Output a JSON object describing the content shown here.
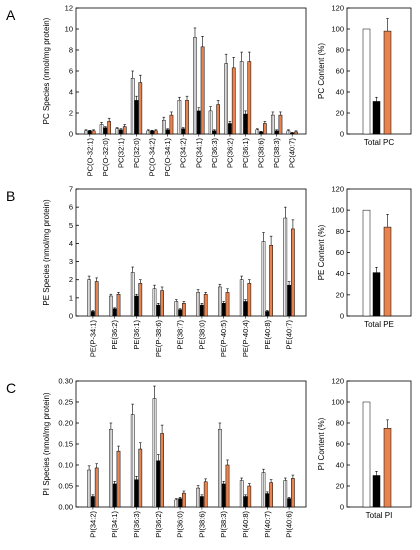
{
  "panels": [
    {
      "letter": "A",
      "species": {
        "ylabel": "PC Species (nmol/mg protein)",
        "ylim": [
          0,
          12
        ],
        "yticks": [
          "0",
          "2",
          "4",
          "6",
          "8",
          "10",
          "12"
        ],
        "categories": [
          "PC(O-32:1)",
          "PC(O-32:0)",
          "PC(32:1)",
          "PC(32:0)",
          "PC(O-34:2)",
          "PC(O-34:1)",
          "PC(34:2)",
          "PC(34:1)",
          "PC(36:3)",
          "PC(36:2)",
          "PC(36:1)",
          "PC(38:6)",
          "PC(38:3)",
          "PC(40:7)"
        ],
        "series": [
          {
            "values": [
              0.3,
              0.9,
              0.5,
              5.3,
              0.3,
              1.3,
              3.2,
              9.2,
              2.2,
              6.7,
              6.9,
              0.4,
              1.8,
              0.3
            ],
            "errors": [
              0.1,
              0.2,
              0.1,
              0.7,
              0.1,
              0.3,
              0.3,
              0.9,
              0.4,
              0.9,
              0.9,
              0.1,
              0.3,
              0.1
            ]
          },
          {
            "values": [
              0.3,
              0.6,
              0.4,
              3.2,
              0.3,
              0.4,
              0.5,
              2.2,
              0.3,
              1.0,
              1.9,
              0.2,
              0.3,
              0.1
            ],
            "errors": [
              0.05,
              0.1,
              0.1,
              0.4,
              0.05,
              0.1,
              0.1,
              0.3,
              0.1,
              0.2,
              0.3,
              0.05,
              0.1,
              0.05
            ]
          },
          {
            "values": [
              0.3,
              1.2,
              0.7,
              4.9,
              0.3,
              1.8,
              3.2,
              8.3,
              2.8,
              6.3,
              6.9,
              1.0,
              1.8,
              0.2
            ],
            "errors": [
              0.1,
              0.3,
              0.2,
              0.7,
              0.1,
              0.3,
              0.4,
              1.0,
              0.4,
              1.0,
              0.9,
              0.2,
              0.3,
              0.1
            ]
          }
        ]
      },
      "total": {
        "ylabel": "PC Content (%)",
        "ylim": [
          0,
          120
        ],
        "yticks": [
          "0",
          "20",
          "40",
          "60",
          "80",
          "100",
          "120"
        ],
        "category": "Total PC",
        "values": [
          100,
          31,
          98
        ],
        "errors": [
          0,
          4,
          12
        ]
      }
    },
    {
      "letter": "B",
      "species": {
        "ylabel": "PE Species (nmol/mg protein)",
        "ylim": [
          0,
          7
        ],
        "yticks": [
          "0",
          "1",
          "2",
          "3",
          "4",
          "5",
          "6",
          "7"
        ],
        "categories": [
          "PE(P-34:1)",
          "PE(36:2)",
          "PE(36:1)",
          "PE(P-38:6)",
          "PE(38:7)",
          "PE(38:0)",
          "PE(P-40:5)",
          "PE(P-40:4)",
          "PE(40:8)",
          "PE(40:7)"
        ],
        "series": [
          {
            "values": [
              2.0,
              1.1,
              2.4,
              1.5,
              0.8,
              1.3,
              1.6,
              2.0,
              4.1,
              5.4
            ],
            "errors": [
              0.2,
              0.1,
              0.3,
              0.2,
              0.1,
              0.15,
              0.15,
              0.2,
              0.5,
              0.6
            ]
          },
          {
            "values": [
              0.25,
              0.4,
              1.1,
              0.6,
              0.35,
              0.6,
              0.7,
              0.8,
              0.25,
              1.7
            ],
            "errors": [
              0.05,
              0.05,
              0.1,
              0.1,
              0.05,
              0.1,
              0.1,
              0.1,
              0.05,
              0.2
            ]
          },
          {
            "values": [
              1.9,
              1.2,
              1.8,
              1.4,
              0.7,
              1.2,
              1.3,
              1.8,
              3.9,
              4.8
            ],
            "errors": [
              0.2,
              0.1,
              0.2,
              0.2,
              0.1,
              0.1,
              0.2,
              0.2,
              0.5,
              0.5
            ]
          }
        ]
      },
      "total": {
        "ylabel": "PE Content (%)",
        "ylim": [
          0,
          120
        ],
        "yticks": [
          "0",
          "20",
          "40",
          "60",
          "80",
          "100",
          "120"
        ],
        "category": "Total PE",
        "values": [
          100,
          41,
          84
        ],
        "errors": [
          0,
          5,
          12
        ]
      }
    },
    {
      "letter": "C",
      "species": {
        "ylabel": "PI Species (nmol/mg protein)",
        "ylim": [
          0,
          0.3
        ],
        "yticks": [
          "0.00",
          "0.05",
          "0.10",
          "0.15",
          "0.20",
          "0.25",
          "0.30"
        ],
        "categories": [
          "PI(34:2)",
          "PI(34:1)",
          "PI(36:3)",
          "PI(36:2)",
          "PI(36:0)",
          "PI(38:6)",
          "PI(38:3)",
          "PI(40:8)",
          "PI(40:7)",
          "PI(40:6)"
        ],
        "series": [
          {
            "values": [
              0.088,
              0.185,
              0.22,
              0.258,
              0.017,
              0.045,
              0.185,
              0.063,
              0.082,
              0.063
            ],
            "errors": [
              0.01,
              0.015,
              0.025,
              0.03,
              0.003,
              0.006,
              0.015,
              0.006,
              0.008,
              0.006
            ]
          },
          {
            "values": [
              0.025,
              0.055,
              0.065,
              0.11,
              0.02,
              0.025,
              0.055,
              0.025,
              0.032,
              0.02
            ],
            "errors": [
              0.004,
              0.006,
              0.008,
              0.015,
              0.003,
              0.004,
              0.006,
              0.004,
              0.004,
              0.003
            ]
          },
          {
            "values": [
              0.093,
              0.133,
              0.138,
              0.175,
              0.033,
              0.06,
              0.1,
              0.05,
              0.058,
              0.068
            ],
            "errors": [
              0.01,
              0.012,
              0.015,
              0.02,
              0.005,
              0.007,
              0.012,
              0.006,
              0.007,
              0.008
            ]
          }
        ]
      },
      "total": {
        "ylabel": "PI Content (%)",
        "ylim": [
          0,
          120
        ],
        "yticks": [
          "0",
          "20",
          "40",
          "60",
          "80",
          "100",
          "120"
        ],
        "category": "Total PI",
        "values": [
          100,
          30,
          75
        ],
        "errors": [
          0,
          4,
          8
        ]
      }
    }
  ],
  "colors": {
    "series": [
      "#ffffff",
      "#000000",
      "#e8834f"
    ],
    "gray_stripe": "#8c8c8c"
  },
  "chart_data": [
    {
      "type": "bar",
      "ylabel": "PC Species (nmol/mg protein)",
      "ylim": [
        0,
        12
      ],
      "categories": [
        "PC(O-32:1)",
        "PC(O-32:0)",
        "PC(32:1)",
        "PC(32:0)",
        "PC(O-34:2)",
        "PC(O-34:1)",
        "PC(34:2)",
        "PC(34:1)",
        "PC(36:3)",
        "PC(36:2)",
        "PC(36:1)",
        "PC(38:6)",
        "PC(38:3)",
        "PC(40:7)"
      ],
      "series": [
        {
          "values": [
            0.3,
            0.9,
            0.5,
            5.3,
            0.3,
            1.3,
            3.2,
            9.2,
            2.2,
            6.7,
            6.9,
            0.4,
            1.8,
            0.3
          ]
        },
        {
          "values": [
            0.3,
            0.6,
            0.4,
            3.2,
            0.3,
            0.4,
            0.5,
            2.2,
            0.3,
            1.0,
            1.9,
            0.2,
            0.3,
            0.1
          ]
        },
        {
          "values": [
            0.3,
            1.2,
            0.7,
            4.9,
            0.3,
            1.8,
            3.2,
            8.3,
            2.8,
            6.3,
            6.9,
            1.0,
            1.8,
            0.2
          ]
        }
      ]
    },
    {
      "type": "bar",
      "ylabel": "PC Content (%)",
      "ylim": [
        0,
        120
      ],
      "categories": [
        "Total PC"
      ],
      "series": [
        {
          "values": [
            100
          ]
        },
        {
          "values": [
            31
          ]
        },
        {
          "values": [
            98
          ]
        }
      ]
    },
    {
      "type": "bar",
      "ylabel": "PE Species (nmol/mg protein)",
      "ylim": [
        0,
        7
      ],
      "categories": [
        "PE(P-34:1)",
        "PE(36:2)",
        "PE(36:1)",
        "PE(P-38:6)",
        "PE(38:7)",
        "PE(38:0)",
        "PE(P-40:5)",
        "PE(P-40:4)",
        "PE(40:8)",
        "PE(40:7)"
      ],
      "series": [
        {
          "values": [
            2.0,
            1.1,
            2.4,
            1.5,
            0.8,
            1.3,
            1.6,
            2.0,
            4.1,
            5.4
          ]
        },
        {
          "values": [
            0.25,
            0.4,
            1.1,
            0.6,
            0.35,
            0.6,
            0.7,
            0.8,
            0.25,
            1.7
          ]
        },
        {
          "values": [
            1.9,
            1.2,
            1.8,
            1.4,
            0.7,
            1.2,
            1.3,
            1.8,
            3.9,
            4.8
          ]
        }
      ]
    },
    {
      "type": "bar",
      "ylabel": "PE Content (%)",
      "ylim": [
        0,
        120
      ],
      "categories": [
        "Total PE"
      ],
      "series": [
        {
          "values": [
            100
          ]
        },
        {
          "values": [
            41
          ]
        },
        {
          "values": [
            84
          ]
        }
      ]
    },
    {
      "type": "bar",
      "ylabel": "PI Species (nmol/mg protein)",
      "ylim": [
        0,
        0.3
      ],
      "categories": [
        "PI(34:2)",
        "PI(34:1)",
        "PI(36:3)",
        "PI(36:2)",
        "PI(36:0)",
        "PI(38:6)",
        "PI(38:3)",
        "PI(40:8)",
        "PI(40:7)",
        "PI(40:6)"
      ],
      "series": [
        {
          "values": [
            0.088,
            0.185,
            0.22,
            0.258,
            0.017,
            0.045,
            0.185,
            0.063,
            0.082,
            0.063
          ]
        },
        {
          "values": [
            0.025,
            0.055,
            0.065,
            0.11,
            0.02,
            0.025,
            0.055,
            0.025,
            0.032,
            0.02
          ]
        },
        {
          "values": [
            0.093,
            0.133,
            0.138,
            0.175,
            0.033,
            0.06,
            0.1,
            0.05,
            0.058,
            0.068
          ]
        }
      ]
    },
    {
      "type": "bar",
      "ylabel": "PI Content (%)",
      "ylim": [
        0,
        120
      ],
      "categories": [
        "Total PI"
      ],
      "series": [
        {
          "values": [
            100
          ]
        },
        {
          "values": [
            30
          ]
        },
        {
          "values": [
            75
          ]
        }
      ]
    }
  ]
}
